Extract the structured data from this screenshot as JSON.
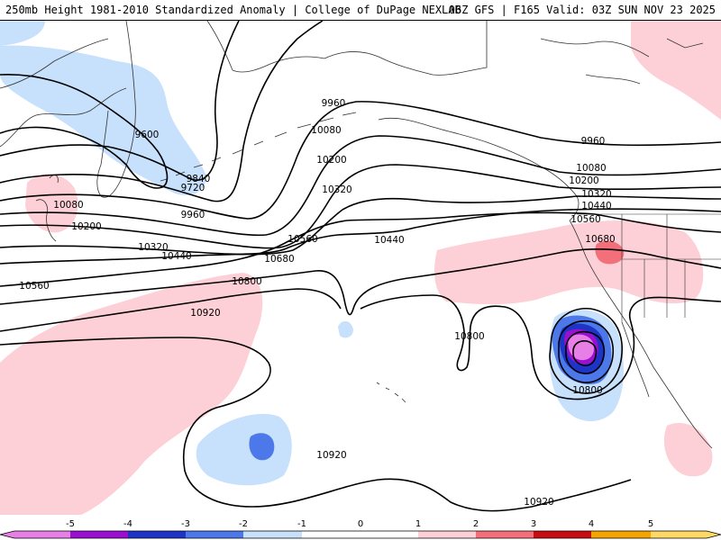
{
  "header": {
    "left": "250mb Height 1981-2010 Standardized Anomaly | College of DuPage NEXLAB",
    "right": "06Z GFS | F165 Valid: 03Z SUN NOV 23 2025"
  },
  "colors": {
    "neg5": "#e77fe6",
    "neg4": "#9a0fd0",
    "neg3": "#1e34c6",
    "neg2": "#4c78ea",
    "neg1": "#c7e0fb",
    "zero": "#ffffff",
    "pos1": "#fcd0d6",
    "pos2": "#f3707b",
    "pos3": "#c80c14",
    "pos4": "#f5a400",
    "pos5": "#ffd966",
    "land_outline": "#333333",
    "contour": "#000000"
  },
  "contour_labels": {
    "c9600": "9600",
    "c9720": "9720",
    "c9840": "9840",
    "c9960": "9960",
    "c10080": "10080",
    "c10200": "10200",
    "c10320": "10320",
    "c10440": "10440",
    "c10560": "10560",
    "c10680": "10680",
    "c10800": "10800",
    "c10920": "10920"
  },
  "colorbar": {
    "ticks": [
      "-5",
      "-4",
      "-3",
      "-2",
      "-1",
      "0",
      "1",
      "2",
      "3",
      "4",
      "5"
    ]
  }
}
